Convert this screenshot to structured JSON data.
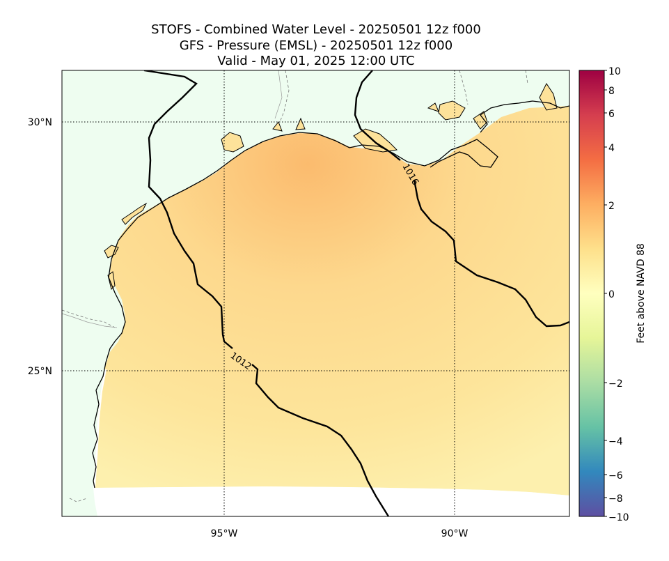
{
  "title": {
    "line1": "STOFS - Combined Water Level - 20250501 12z f000",
    "line2": "GFS - Pressure (EMSL) - 20250501 12z f000",
    "line3": "Valid - May 01, 2025 12:00 UTC"
  },
  "map": {
    "lat_labels": [
      "30°N",
      "25°N"
    ],
    "lon_labels": [
      "95°W",
      "90°W"
    ],
    "isobar_labels": [
      "1012",
      "1016"
    ],
    "colors": {
      "land": "#eefdf0",
      "water_level": "#fde59a",
      "water_level_high": "#fbbe70",
      "no_data": "#ffffff"
    }
  },
  "colorbar": {
    "label": "Feet above NAVD 88",
    "ticks": [
      "10",
      "8",
      "6",
      "4",
      "2",
      "0",
      "−2",
      "−4",
      "−6",
      "−8",
      "−10"
    ]
  }
}
